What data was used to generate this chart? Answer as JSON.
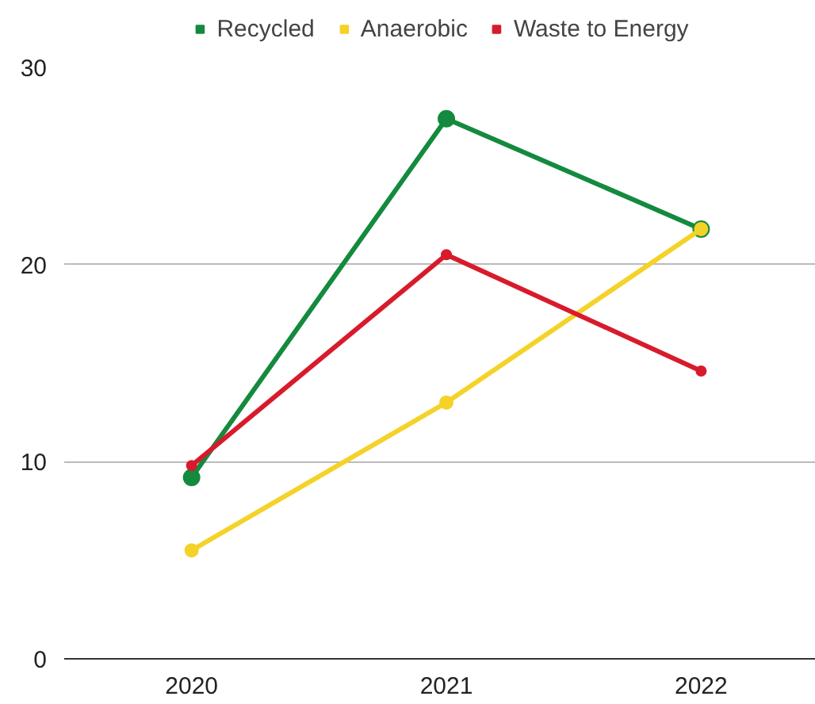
{
  "chart_data": {
    "type": "line",
    "categories": [
      "2020",
      "2021",
      "2022"
    ],
    "series": [
      {
        "name": "Recycled",
        "color": "#148a3e",
        "values": [
          9.2,
          27.4,
          21.8
        ]
      },
      {
        "name": "Anaerobic",
        "color": "#f5d228",
        "values": [
          5.5,
          13.0,
          21.8
        ]
      },
      {
        "name": "Waste to Energy",
        "color": "#d81b2c",
        "values": [
          9.8,
          20.5,
          14.6
        ]
      }
    ],
    "ylim": [
      0,
      30
    ],
    "yticks": [
      0,
      10,
      20,
      30
    ],
    "grid": "y",
    "legend": "top",
    "marker": "circle",
    "line_style": "solid"
  }
}
